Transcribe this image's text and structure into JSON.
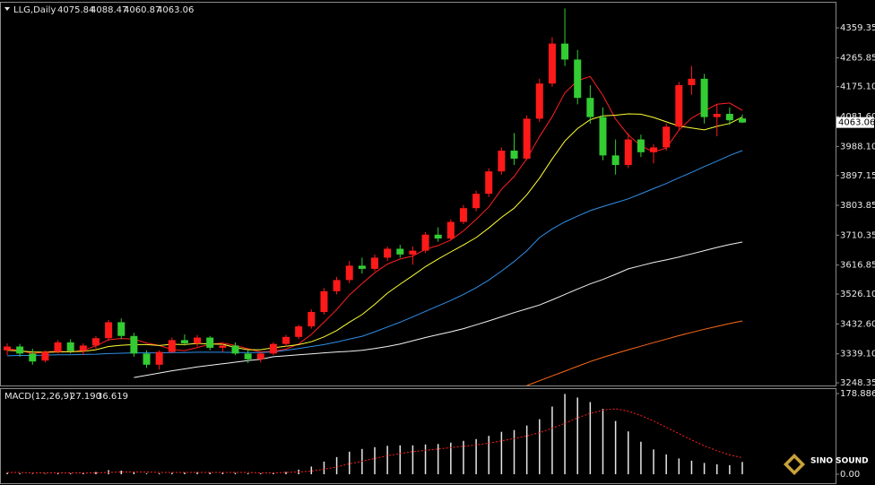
{
  "chart_data": [
    {
      "type": "candlestick",
      "title": "LLG,Daily",
      "up_color": "#ff1a1a",
      "down_color": "#33cc33",
      "ohlc": [
        [
          3350,
          3372,
          3335,
          3362
        ],
        [
          3362,
          3370,
          3330,
          3340
        ],
        [
          3340,
          3355,
          3305,
          3315
        ],
        [
          3318,
          3350,
          3312,
          3345
        ],
        [
          3345,
          3382,
          3340,
          3375
        ],
        [
          3375,
          3385,
          3340,
          3348
        ],
        [
          3348,
          3372,
          3336,
          3365
        ],
        [
          3365,
          3395,
          3355,
          3388
        ],
        [
          3388,
          3445,
          3380,
          3438
        ],
        [
          3438,
          3450,
          3385,
          3395
        ],
        [
          3395,
          3405,
          3330,
          3340
        ],
        [
          3340,
          3350,
          3295,
          3305
        ],
        [
          3305,
          3350,
          3290,
          3345
        ],
        [
          3345,
          3390,
          3340,
          3382
        ],
        [
          3382,
          3400,
          3365,
          3372
        ],
        [
          3372,
          3398,
          3362,
          3390
        ],
        [
          3390,
          3395,
          3350,
          3358
        ],
        [
          3358,
          3372,
          3345,
          3365
        ],
        [
          3365,
          3375,
          3335,
          3340
        ],
        [
          3340,
          3350,
          3310,
          3322
        ],
        [
          3322,
          3345,
          3312,
          3340
        ],
        [
          3340,
          3375,
          3335,
          3370
        ],
        [
          3370,
          3398,
          3362,
          3392
        ],
        [
          3392,
          3430,
          3385,
          3425
        ],
        [
          3425,
          3478,
          3418,
          3470
        ],
        [
          3470,
          3545,
          3462,
          3535
        ],
        [
          3535,
          3580,
          3525,
          3570
        ],
        [
          3570,
          3630,
          3560,
          3615
        ],
        [
          3615,
          3640,
          3590,
          3605
        ],
        [
          3605,
          3650,
          3598,
          3640
        ],
        [
          3640,
          3675,
          3630,
          3668
        ],
        [
          3668,
          3680,
          3640,
          3650
        ],
        [
          3650,
          3675,
          3618,
          3662
        ],
        [
          3662,
          3720,
          3655,
          3712
        ],
        [
          3712,
          3735,
          3690,
          3700
        ],
        [
          3700,
          3760,
          3695,
          3752
        ],
        [
          3752,
          3805,
          3745,
          3795
        ],
        [
          3795,
          3850,
          3785,
          3840
        ],
        [
          3840,
          3920,
          3830,
          3910
        ],
        [
          3910,
          3985,
          3900,
          3975
        ],
        [
          3975,
          4030,
          3930,
          3950
        ],
        [
          3950,
          4085,
          3945,
          4075
        ],
        [
          4075,
          4200,
          4065,
          4185
        ],
        [
          4185,
          4330,
          4175,
          4310
        ],
        [
          4310,
          4420,
          4240,
          4260
        ],
        [
          4260,
          4290,
          4120,
          4140
        ],
        [
          4140,
          4180,
          4060,
          4080
        ],
        [
          4080,
          4110,
          3945,
          3960
        ],
        [
          3960,
          4010,
          3900,
          3930
        ],
        [
          3930,
          4030,
          3920,
          4010
        ],
        [
          4010,
          4025,
          3955,
          3970
        ],
        [
          3970,
          3995,
          3935,
          3985
        ],
        [
          3985,
          4060,
          3975,
          4050
        ],
        [
          4050,
          4190,
          4040,
          4180
        ],
        [
          4180,
          4240,
          4150,
          4200
        ],
        [
          4200,
          4215,
          4060,
          4080
        ],
        [
          4080,
          4120,
          4020,
          4090
        ],
        [
          4090,
          4110,
          4055,
          4070
        ],
        [
          4075.84,
          4088.47,
          4060.87,
          4063.06
        ]
      ],
      "series": [
        {
          "color": "#ff2020",
          "values": [
            3355,
            3350,
            3340,
            3345,
            3347,
            3345,
            3350,
            3364,
            3383,
            3387,
            3385,
            3373,
            3365,
            3353,
            3349,
            3359,
            3369,
            3373,
            3365,
            3355,
            3345,
            3347,
            3354,
            3370,
            3400,
            3438,
            3478,
            3523,
            3559,
            3593,
            3620,
            3636,
            3645,
            3666,
            3678,
            3695,
            3724,
            3760,
            3799,
            3854,
            3894,
            3950,
            4019,
            4081,
            4156,
            4194,
            4207,
            4148,
            4074,
            4024,
            3990,
            3971,
            3983,
            4039,
            4077,
            4099,
            4120,
            4124,
            4101
          ]
        },
        {
          "color": "#ffff33",
          "values": [
            3350,
            3348,
            3345,
            3344,
            3345,
            3346,
            3347,
            3352,
            3362,
            3366,
            3368,
            3368,
            3365,
            3369,
            3368,
            3372,
            3370,
            3369,
            3359,
            3352,
            3352,
            3358,
            3363,
            3368,
            3377,
            3392,
            3412,
            3438,
            3462,
            3494,
            3529,
            3557,
            3584,
            3612,
            3636,
            3658,
            3680,
            3703,
            3733,
            3766,
            3795,
            3837,
            3889,
            3949,
            4005,
            4044,
            4072,
            4084,
            4086,
            4090,
            4089,
            4079,
            4065,
            4052,
            4046,
            4040,
            4051,
            4060,
            4080
          ]
        },
        {
          "color": "#2f8fe8",
          "values": [
            3333,
            3334,
            3334,
            3335,
            3336,
            3336,
            3337,
            3338,
            3340,
            3341,
            3342,
            3342,
            3342,
            3343,
            3343,
            3344,
            3344,
            3344,
            3343,
            3343,
            3343,
            3345,
            3350,
            3356,
            3362,
            3368,
            3376,
            3385,
            3394,
            3408,
            3423,
            3438,
            3455,
            3472,
            3489,
            3506,
            3525,
            3546,
            3570,
            3598,
            3628,
            3662,
            3703,
            3730,
            3752,
            3770,
            3787,
            3800,
            3812,
            3824,
            3840,
            3856,
            3872,
            3890,
            3907,
            3925,
            3942,
            3960,
            3975
          ]
        },
        {
          "color": "#f2f2f2",
          "values": [
            null,
            null,
            null,
            null,
            null,
            null,
            null,
            null,
            null,
            null,
            3265,
            3272,
            3279,
            3286,
            3292,
            3298,
            3303,
            3308,
            3313,
            3318,
            3322,
            3330,
            3333,
            3336,
            3339,
            3342,
            3345,
            3347,
            3350,
            3356,
            3362,
            3370,
            3380,
            3390,
            3399,
            3408,
            3418,
            3430,
            3442,
            3455,
            3468,
            3480,
            3492,
            3508,
            3525,
            3542,
            3558,
            3572,
            3588,
            3605,
            3615,
            3625,
            3633,
            3642,
            3652,
            3662,
            3672,
            3681,
            3689
          ]
        },
        {
          "color": "#ff6a1a",
          "values": [
            null,
            null,
            null,
            null,
            null,
            null,
            null,
            null,
            null,
            null,
            null,
            null,
            null,
            null,
            null,
            null,
            null,
            null,
            null,
            null,
            null,
            null,
            null,
            null,
            null,
            null,
            null,
            null,
            null,
            null,
            null,
            null,
            null,
            null,
            null,
            null,
            null,
            null,
            null,
            null,
            null,
            3240,
            3255,
            3270,
            3285,
            3300,
            3315,
            3328,
            3340,
            3352,
            3363,
            3374,
            3385,
            3396,
            3406,
            3416,
            3425,
            3434,
            3442
          ]
        }
      ],
      "ylim": [
        3240,
        4438
      ],
      "yticks": [
        4359.35,
        4265.85,
        {
          "value": 4175.1,
          "label": "4175.10"
        },
        {
          "value": 4081.6,
          "label": "4081.60"
        },
        {
          "value": 3988.1,
          "label": "3988.10"
        },
        3897.15,
        3803.85,
        3710.35,
        3616.85,
        {
          "value": 3526.1,
          "label": "3526.10"
        },
        {
          "value": 3432.6,
          "label": "3432.60"
        },
        {
          "value": 3339.1,
          "label": "3339.10"
        },
        3248.35
      ],
      "grid": false
    },
    {
      "type": "macd",
      "title": "MACD(12,26,9)",
      "legend_values": [
        {
          "value": 27.19,
          "label": "27.190"
        },
        {
          "value": 36.619,
          "label": "36.619"
        }
      ],
      "histogram": {
        "color": "#e6e6e6",
        "values": [
          3,
          2,
          1,
          1,
          2,
          2,
          3,
          5,
          9,
          8,
          5,
          2,
          2,
          3,
          4,
          5,
          4,
          4,
          3,
          2,
          2,
          3,
          5,
          10,
          17,
          28,
          38,
          50,
          56,
          60,
          63,
          64,
          64,
          66,
          67,
          70,
          74,
          78,
          85,
          94,
          98,
          108,
          122,
          150,
          178,
          170,
          160,
          145,
          118,
          95,
          72,
          55,
          44,
          35,
          30,
          25,
          22,
          20,
          27.19
        ]
      },
      "signal": {
        "color": "#ff2020",
        "values": [
          4,
          4,
          3,
          3,
          3,
          3,
          3,
          3,
          4,
          5,
          5,
          5,
          4,
          4,
          4,
          4,
          4,
          4,
          4,
          4,
          3,
          3,
          4,
          5,
          7,
          11,
          16,
          23,
          29,
          35,
          41,
          46,
          50,
          53,
          56,
          59,
          62,
          65,
          69,
          74,
          79,
          85,
          92,
          102,
          113,
          125,
          135,
          142,
          145,
          140,
          130,
          118,
          104,
          90,
          76,
          63,
          52,
          43,
          36.619
        ]
      },
      "ylim": [
        -21.9,
        190.8
      ],
      "yticks": [
        178.886,
        {
          "value": 0,
          "label": "0.00"
        }
      ]
    }
  ],
  "logo": {
    "text": "SINO SOUND"
  }
}
